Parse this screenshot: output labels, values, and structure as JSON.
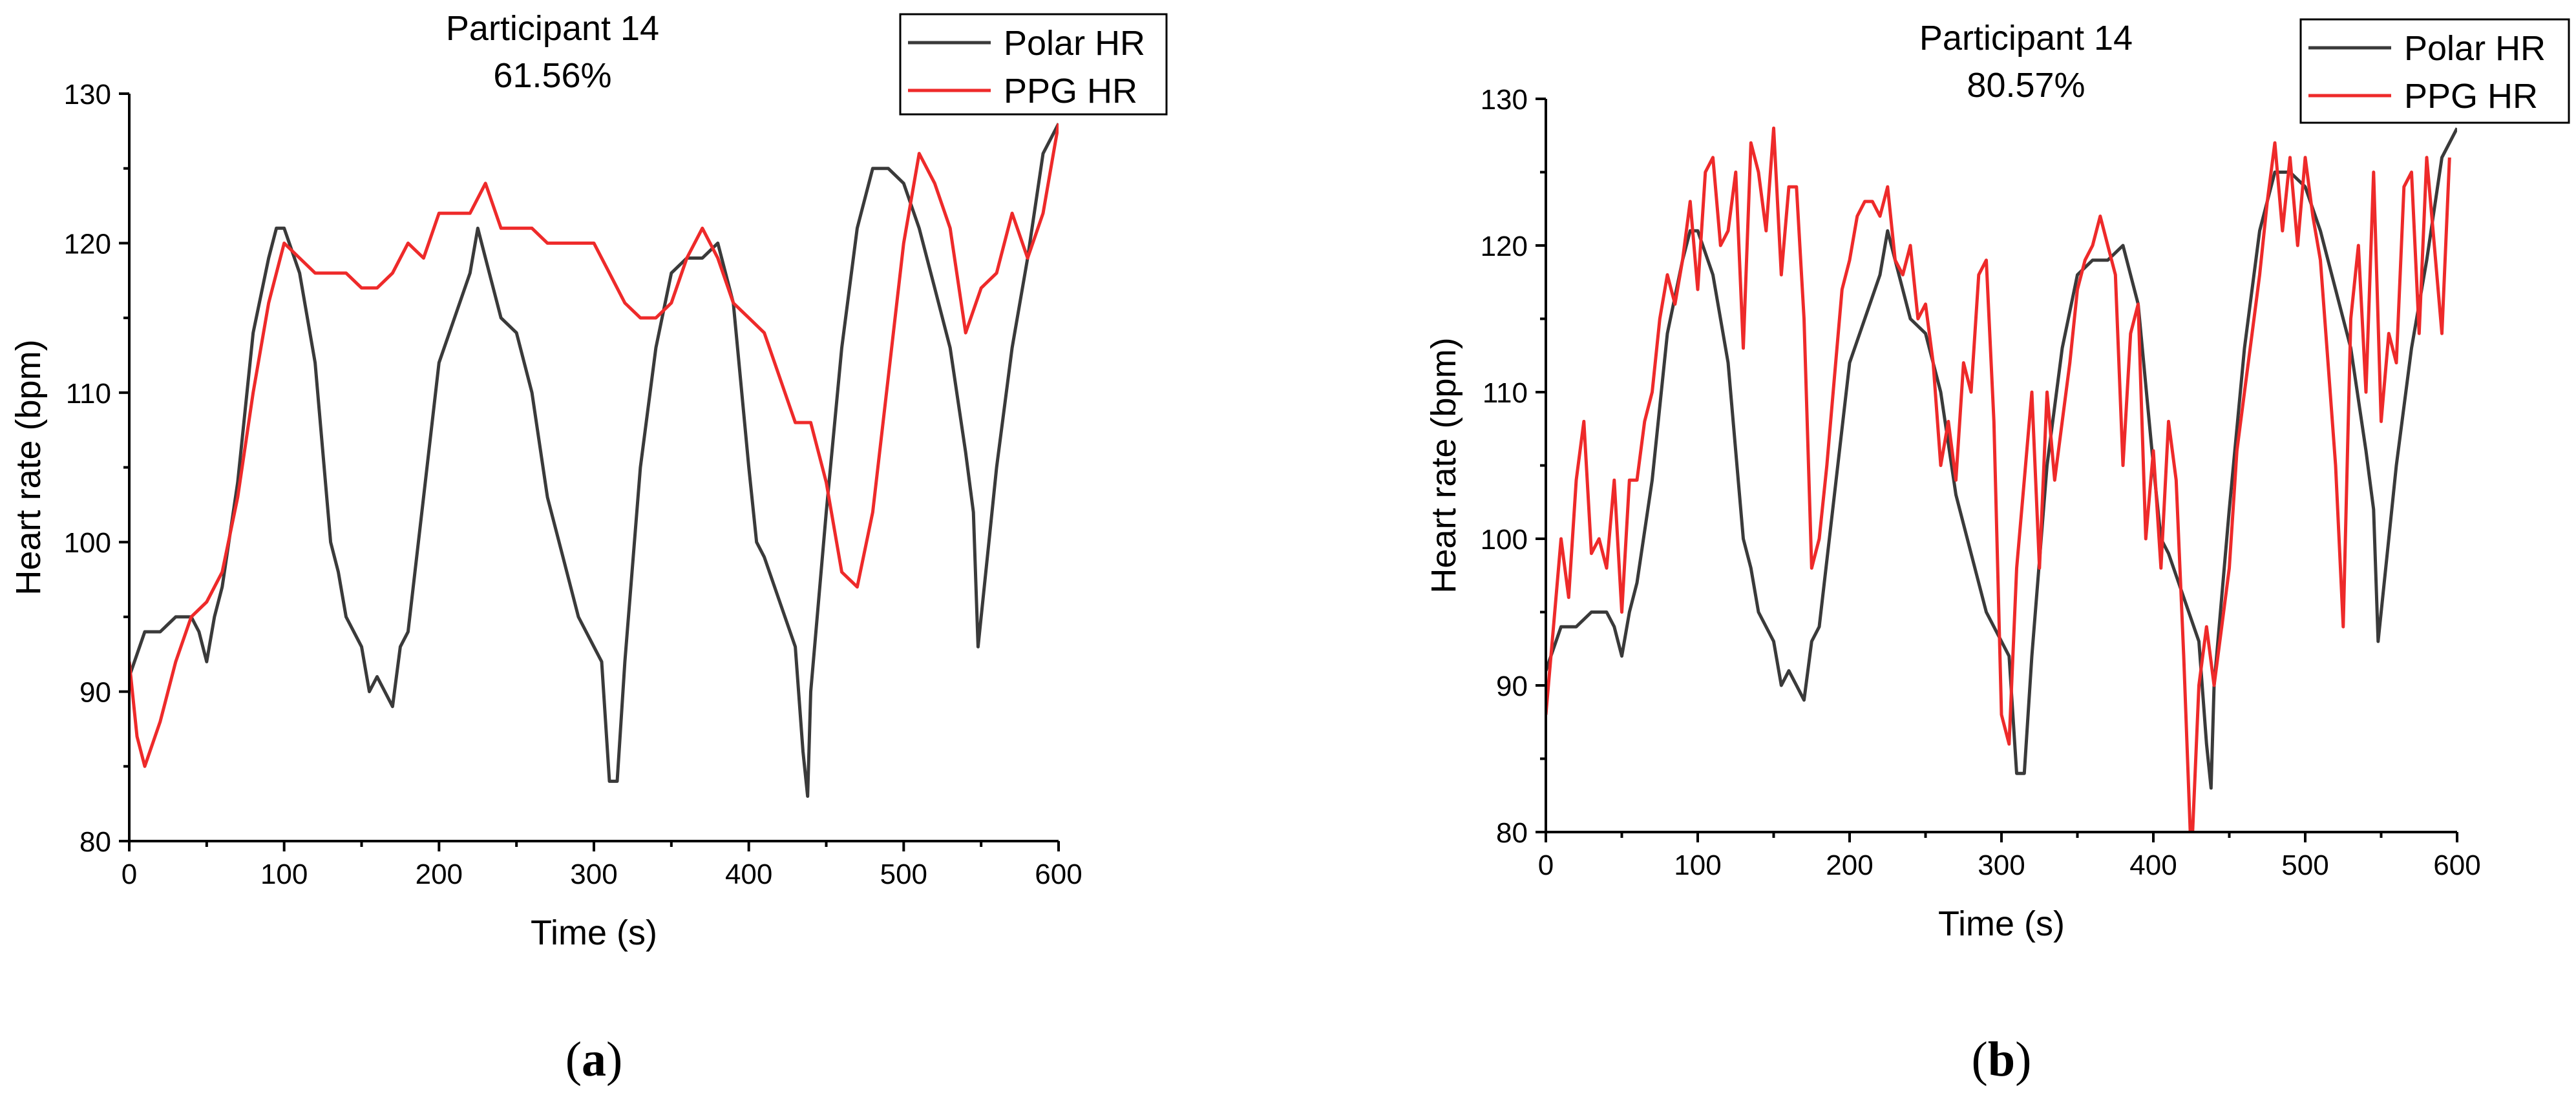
{
  "chart_data": [
    {
      "id": "a",
      "type": "line",
      "title": "Participant 14",
      "subtitle": "61.56%",
      "caption": "a",
      "xlabel": "Time (s)",
      "ylabel": "Heart rate (bpm)",
      "xlim": [
        0,
        600
      ],
      "ylim": [
        80,
        130
      ],
      "xticks": [
        0,
        100,
        200,
        300,
        400,
        500,
        600
      ],
      "yticks": [
        80,
        90,
        100,
        110,
        120,
        130
      ],
      "legend_position": "top-right",
      "series": [
        {
          "name": "Polar HR",
          "color": "#3a3a3a",
          "x": [
            0,
            10,
            20,
            30,
            40,
            45,
            50,
            55,
            60,
            70,
            80,
            90,
            95,
            100,
            110,
            120,
            130,
            135,
            140,
            150,
            155,
            160,
            165,
            170,
            175,
            180,
            190,
            200,
            210,
            220,
            225,
            230,
            240,
            250,
            260,
            270,
            280,
            290,
            300,
            305,
            310,
            315,
            320,
            330,
            340,
            350,
            360,
            370,
            380,
            390,
            400,
            405,
            410,
            420,
            430,
            435,
            438,
            440,
            450,
            460,
            470,
            480,
            490,
            500,
            510,
            520,
            530,
            540,
            545,
            548,
            555,
            560,
            570,
            580,
            590,
            600
          ],
          "y": [
            91,
            94,
            94,
            95,
            95,
            94,
            92,
            95,
            97,
            104,
            114,
            119,
            121,
            121,
            118,
            112,
            100,
            98,
            95,
            93,
            90,
            91,
            90,
            89,
            93,
            94,
            103,
            112,
            115,
            118,
            121,
            119,
            115,
            114,
            110,
            103,
            99,
            95,
            93,
            92,
            84,
            84,
            92,
            105,
            113,
            118,
            119,
            119,
            120,
            116,
            105,
            100,
            99,
            96,
            93,
            86,
            83,
            90,
            102,
            113,
            121,
            125,
            125,
            124,
            121,
            117,
            113,
            106,
            102,
            93,
            100,
            105,
            113,
            119,
            126,
            128
          ]
        },
        {
          "name": "PPG HR",
          "color": "#ee2a2a",
          "x": [
            0,
            5,
            10,
            20,
            30,
            40,
            50,
            60,
            70,
            80,
            90,
            100,
            110,
            120,
            130,
            140,
            150,
            160,
            170,
            180,
            190,
            200,
            210,
            220,
            230,
            240,
            250,
            260,
            270,
            280,
            290,
            300,
            310,
            320,
            330,
            340,
            350,
            360,
            370,
            380,
            390,
            400,
            410,
            420,
            430,
            440,
            450,
            460,
            470,
            480,
            490,
            500,
            510,
            520,
            530,
            540,
            550,
            560,
            570,
            580,
            590,
            600
          ],
          "y": [
            92,
            87,
            85,
            88,
            92,
            95,
            96,
            98,
            103,
            110,
            116,
            120,
            119,
            118,
            118,
            118,
            117,
            117,
            118,
            120,
            119,
            122,
            122,
            122,
            124,
            121,
            121,
            121,
            120,
            120,
            120,
            120,
            118,
            116,
            115,
            115,
            116,
            119,
            121,
            119,
            116,
            115,
            114,
            111,
            108,
            108,
            104,
            98,
            97,
            102,
            111,
            120,
            126,
            124,
            121,
            114,
            117,
            118,
            122,
            119,
            122,
            128
          ]
        }
      ]
    },
    {
      "id": "b",
      "type": "line",
      "title": "Participant 14",
      "subtitle": "80.57%",
      "caption": "b",
      "xlabel": "Time (s)",
      "ylabel": "Heart rate (bpm)",
      "xlim": [
        0,
        600
      ],
      "ylim": [
        80,
        130
      ],
      "xticks": [
        0,
        100,
        200,
        300,
        400,
        500,
        600
      ],
      "yticks": [
        80,
        90,
        100,
        110,
        120,
        130
      ],
      "legend_position": "top-right",
      "series": [
        {
          "name": "Polar HR",
          "color": "#3a3a3a",
          "x": [
            0,
            10,
            20,
            30,
            40,
            45,
            50,
            55,
            60,
            70,
            80,
            90,
            95,
            100,
            110,
            120,
            130,
            135,
            140,
            150,
            155,
            160,
            165,
            170,
            175,
            180,
            190,
            200,
            210,
            220,
            225,
            230,
            240,
            250,
            260,
            270,
            280,
            290,
            300,
            305,
            310,
            315,
            320,
            330,
            340,
            350,
            360,
            370,
            380,
            390,
            400,
            405,
            410,
            420,
            430,
            435,
            438,
            440,
            450,
            460,
            470,
            480,
            490,
            500,
            510,
            520,
            530,
            540,
            545,
            548,
            555,
            560,
            570,
            580,
            590,
            600
          ],
          "y": [
            91,
            94,
            94,
            95,
            95,
            94,
            92,
            95,
            97,
            104,
            114,
            119,
            121,
            121,
            118,
            112,
            100,
            98,
            95,
            93,
            90,
            91,
            90,
            89,
            93,
            94,
            103,
            112,
            115,
            118,
            121,
            119,
            115,
            114,
            110,
            103,
            99,
            95,
            93,
            92,
            84,
            84,
            92,
            105,
            113,
            118,
            119,
            119,
            120,
            116,
            105,
            100,
            99,
            96,
            93,
            86,
            83,
            90,
            102,
            113,
            121,
            125,
            125,
            124,
            121,
            117,
            113,
            106,
            102,
            93,
            100,
            105,
            113,
            119,
            126,
            128
          ]
        },
        {
          "name": "PPG HR",
          "color": "#ee2a2a",
          "x": [
            0,
            5,
            10,
            15,
            20,
            25,
            30,
            35,
            40,
            45,
            50,
            55,
            60,
            65,
            70,
            75,
            80,
            85,
            90,
            95,
            100,
            105,
            110,
            115,
            120,
            125,
            130,
            135,
            140,
            145,
            150,
            155,
            160,
            165,
            170,
            175,
            180,
            185,
            190,
            195,
            200,
            205,
            210,
            215,
            220,
            225,
            230,
            235,
            240,
            245,
            250,
            255,
            260,
            265,
            270,
            275,
            280,
            285,
            290,
            295,
            300,
            305,
            310,
            315,
            320,
            325,
            330,
            335,
            340,
            345,
            350,
            355,
            360,
            365,
            370,
            375,
            380,
            385,
            390,
            395,
            400,
            405,
            410,
            415,
            420,
            425,
            430,
            435,
            440,
            445,
            450,
            455,
            460,
            465,
            470,
            475,
            480,
            485,
            490,
            495,
            500,
            505,
            510,
            515,
            520,
            525,
            530,
            535,
            540,
            545,
            550,
            555,
            560,
            565,
            570,
            575,
            580,
            585,
            590,
            595
          ],
          "y": [
            88,
            94,
            100,
            96,
            104,
            108,
            99,
            100,
            98,
            104,
            95,
            104,
            104,
            108,
            110,
            115,
            118,
            116,
            119,
            123,
            117,
            125,
            126,
            120,
            121,
            125,
            113,
            127,
            125,
            121,
            128,
            118,
            124,
            124,
            115,
            98,
            100,
            105,
            111,
            117,
            119,
            122,
            123,
            123,
            122,
            124,
            119,
            118,
            120,
            115,
            116,
            112,
            105,
            108,
            104,
            112,
            110,
            118,
            119,
            108,
            88,
            86,
            98,
            104,
            110,
            98,
            110,
            104,
            108,
            112,
            117,
            119,
            120,
            122,
            120,
            118,
            105,
            114,
            116,
            100,
            106,
            98,
            108,
            104,
            92,
            78,
            90,
            94,
            90,
            94,
            98,
            106,
            110,
            114,
            118,
            123,
            127,
            121,
            126,
            120,
            126,
            122,
            119,
            112,
            105,
            94,
            115,
            120,
            110,
            125,
            108,
            114,
            112,
            124,
            125,
            114,
            126,
            120,
            114,
            126
          ]
        }
      ]
    }
  ]
}
